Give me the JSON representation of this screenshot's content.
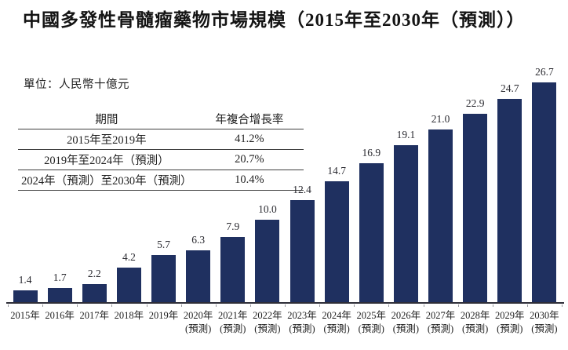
{
  "title": "中國多發性骨髓瘤藥物市場規模（2015年至2030年（預測））",
  "unit_label": "單位：人民幣十億元",
  "cagr_table": {
    "col_period": "期間",
    "col_cagr": "年複合增長率",
    "rows": [
      {
        "period": "2015年至2019年",
        "cagr": "41.2%"
      },
      {
        "period": "2019年至2024年（預測）",
        "cagr": "20.7%"
      },
      {
        "period": "2024年（預測）至2030年（預測）",
        "cagr": "10.4%"
      }
    ]
  },
  "chart_data": {
    "type": "bar",
    "title": "中國多發性骨髓瘤藥物市場規模（2015年至2030年（預測））",
    "ylabel": "人民幣十億元",
    "categories": [
      "2015年",
      "2016年",
      "2017年",
      "2018年",
      "2019年",
      "2020年",
      "2021年",
      "2022年",
      "2023年",
      "2024年",
      "2025年",
      "2026年",
      "2027年",
      "2028年",
      "2029年",
      "2030年"
    ],
    "forecast_suffix": "(預測)",
    "forecast_start_index": 5,
    "values": [
      1.4,
      1.7,
      2.2,
      4.2,
      5.7,
      6.3,
      7.9,
      10.0,
      12.4,
      14.7,
      16.9,
      19.1,
      21.0,
      22.9,
      24.7,
      26.7
    ],
    "ylim": [
      0,
      28
    ],
    "bar_color": "#1f3060",
    "grid": false,
    "legend": false,
    "data_labels": true
  }
}
